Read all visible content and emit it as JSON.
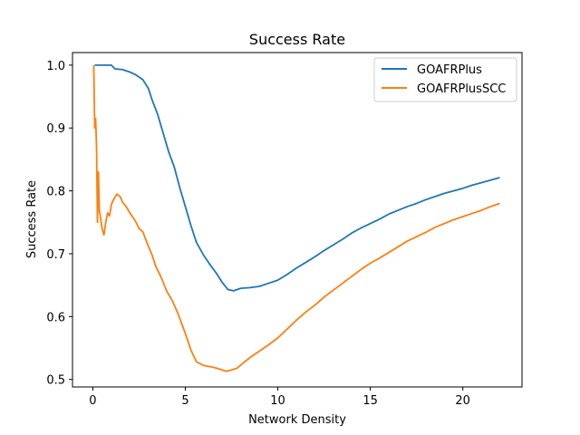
{
  "chart_data": {
    "type": "line",
    "title": "Success Rate",
    "xlabel": "Network Density",
    "ylabel": "Success Rate",
    "xlim": [
      -1.1,
      23.2
    ],
    "ylim": [
      0.488,
      1.02
    ],
    "xticks": [
      0,
      5,
      10,
      15,
      20
    ],
    "yticks": [
      0.5,
      0.6,
      0.7,
      0.8,
      0.9,
      1.0
    ],
    "xtick_labels": [
      "0",
      "5",
      "10",
      "15",
      "20"
    ],
    "ytick_labels": [
      "0.5",
      "0.6",
      "0.7",
      "0.8",
      "0.9",
      "1.0"
    ],
    "grid": false,
    "legend_position": "top-right",
    "series": [
      {
        "name": "GOAFRPlus",
        "color": "#1f77b4",
        "x": [
          0.1,
          1.0,
          1.2,
          1.6,
          2.0,
          2.3,
          2.7,
          3.0,
          3.2,
          3.5,
          3.8,
          4.1,
          4.4,
          4.7,
          5.0,
          5.3,
          5.6,
          6.0,
          6.3,
          6.7,
          7.0,
          7.3,
          7.6,
          8.0,
          8.5,
          9.0,
          9.5,
          10.0,
          10.5,
          11.0,
          11.5,
          12.0,
          12.5,
          13.0,
          13.5,
          14.0,
          14.5,
          15.0,
          15.5,
          16.0,
          16.5,
          17.0,
          17.5,
          18.0,
          18.5,
          19.0,
          19.5,
          20.0,
          20.5,
          21.0,
          21.5,
          22.0
        ],
        "y": [
          1.0,
          1.0,
          0.994,
          0.993,
          0.989,
          0.985,
          0.977,
          0.963,
          0.945,
          0.922,
          0.892,
          0.862,
          0.838,
          0.805,
          0.775,
          0.745,
          0.718,
          0.697,
          0.684,
          0.668,
          0.654,
          0.643,
          0.641,
          0.645,
          0.646,
          0.648,
          0.653,
          0.658,
          0.667,
          0.677,
          0.686,
          0.695,
          0.705,
          0.714,
          0.723,
          0.733,
          0.741,
          0.748,
          0.755,
          0.763,
          0.769,
          0.775,
          0.78,
          0.786,
          0.791,
          0.796,
          0.8,
          0.804,
          0.809,
          0.813,
          0.817,
          0.821
        ]
      },
      {
        "name": "GOAFRPlusSCC",
        "color": "#ff7f0e",
        "x": [
          0.05,
          0.1,
          0.15,
          0.2,
          0.25,
          0.3,
          0.35,
          0.4,
          0.5,
          0.6,
          0.7,
          0.8,
          0.9,
          1.0,
          1.1,
          1.2,
          1.3,
          1.5,
          1.6,
          1.8,
          2.0,
          2.3,
          2.5,
          2.7,
          3.0,
          3.2,
          3.4,
          3.7,
          4.0,
          4.3,
          4.6,
          5.0,
          5.3,
          5.6,
          6.0,
          6.4,
          6.8,
          7.2,
          7.5,
          7.8,
          8.2,
          8.6,
          9.0,
          9.5,
          10.0,
          10.5,
          11.0,
          11.5,
          12.0,
          12.5,
          13.0,
          13.5,
          14.0,
          14.5,
          15.0,
          15.5,
          16.0,
          16.5,
          17.0,
          17.5,
          18.0,
          18.5,
          19.0,
          19.5,
          20.0,
          20.5,
          21.0,
          21.5,
          22.0
        ],
        "y": [
          1.0,
          0.9,
          0.915,
          0.87,
          0.75,
          0.83,
          0.77,
          0.76,
          0.74,
          0.73,
          0.75,
          0.765,
          0.76,
          0.778,
          0.785,
          0.79,
          0.795,
          0.79,
          0.782,
          0.775,
          0.765,
          0.752,
          0.74,
          0.735,
          0.712,
          0.698,
          0.68,
          0.662,
          0.64,
          0.625,
          0.605,
          0.573,
          0.547,
          0.528,
          0.522,
          0.52,
          0.517,
          0.513,
          0.515,
          0.518,
          0.528,
          0.537,
          0.545,
          0.555,
          0.566,
          0.58,
          0.594,
          0.607,
          0.618,
          0.631,
          0.642,
          0.653,
          0.664,
          0.675,
          0.685,
          0.693,
          0.702,
          0.711,
          0.72,
          0.727,
          0.734,
          0.742,
          0.748,
          0.754,
          0.759,
          0.764,
          0.769,
          0.775,
          0.78
        ]
      }
    ]
  }
}
